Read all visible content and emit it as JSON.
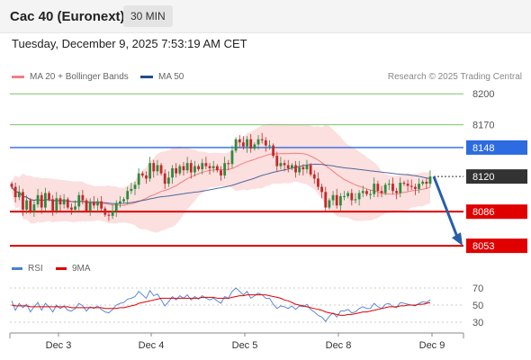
{
  "header": {
    "title": "Cac 40 (Euronext)",
    "timeframe": "30 MIN",
    "datetime": "Tuesday, December 9, 2025 7:53:19 AM CET"
  },
  "legend": {
    "ma20_label": "MA 20 + Bollinger Bands",
    "ma20_color": "#f08080",
    "ma50_label": "MA 50",
    "ma50_color": "#1f4e8c",
    "credit": "Research © 2025 Trading Central"
  },
  "rsi_legend": {
    "rsi_label": "RSI",
    "rsi_color": "#4a7fd4",
    "ma9_label": "9MA",
    "ma9_color": "#e00000"
  },
  "chart_data": {
    "type": "candlestick",
    "x_tick_labels": [
      "Dec 3",
      "Dec 4",
      "Dec 5",
      "Dec 8",
      "Dec 9"
    ],
    "price_ylim": [
      8047,
      8208
    ],
    "price_axis_labels": [
      8200,
      8170,
      8148,
      8120,
      8086,
      8053
    ],
    "levels": {
      "resistance_green": [
        8200,
        8170
      ],
      "resistance_blue": 8148,
      "current": 8120,
      "support_red": [
        8086,
        8053
      ]
    },
    "forecast_arrow": {
      "from": 8120,
      "to": 8053,
      "direction": "down"
    },
    "closes": [
      8110,
      8100,
      8105,
      8088,
      8097,
      8086,
      8093,
      8102,
      8090,
      8104,
      8098,
      8087,
      8099,
      8093,
      8098,
      8090,
      8088,
      8091,
      8102,
      8097,
      8087,
      8095,
      8092,
      8096,
      8089,
      8083,
      8082,
      8087,
      8094,
      8096,
      8098,
      8106,
      8108,
      8112,
      8123,
      8121,
      8118,
      8133,
      8125,
      8131,
      8123,
      8113,
      8119,
      8128,
      8123,
      8130,
      8126,
      8133,
      8124,
      8130,
      8127,
      8133,
      8130,
      8128,
      8130,
      8126,
      8121,
      8133,
      8132,
      8145,
      8156,
      8153,
      8149,
      8156,
      8147,
      8151,
      8156,
      8155,
      8150,
      8150,
      8140,
      8130,
      8133,
      8131,
      8128,
      8131,
      8124,
      8129,
      8127,
      8131,
      8122,
      8118,
      8110,
      8105,
      8090,
      8097,
      8102,
      8092,
      8101,
      8101,
      8104,
      8097,
      8098,
      8104,
      8106,
      8103,
      8103,
      8113,
      8106,
      8104,
      8112,
      8113,
      8106,
      8104,
      8114,
      8113,
      8111,
      8110,
      8108,
      8113,
      8115,
      8113,
      8120
    ],
    "rsi": {
      "ylim": [
        20,
        80
      ],
      "levels": [
        70,
        50,
        30
      ],
      "rsi_values": [
        55,
        44,
        52,
        47,
        51,
        42,
        48,
        53,
        44,
        52,
        48,
        42,
        50,
        46,
        49,
        44,
        43,
        46,
        52,
        49,
        43,
        48,
        46,
        49,
        45,
        42,
        41,
        45,
        50,
        52,
        53,
        57,
        58,
        60,
        66,
        62,
        58,
        67,
        61,
        63,
        56,
        49,
        54,
        60,
        56,
        61,
        58,
        62,
        56,
        60,
        57,
        61,
        58,
        56,
        58,
        55,
        52,
        60,
        58,
        66,
        70,
        66,
        62,
        66,
        58,
        61,
        64,
        62,
        58,
        58,
        51,
        46,
        49,
        48,
        46,
        49,
        45,
        49,
        48,
        51,
        45,
        42,
        38,
        36,
        31,
        37,
        41,
        36,
        43,
        43,
        45,
        41,
        42,
        46,
        48,
        46,
        46,
        52,
        48,
        46,
        51,
        52,
        48,
        47,
        53,
        52,
        51,
        50,
        49,
        52,
        54,
        53,
        56
      ],
      "ma9_values": [
        50,
        49,
        49,
        49,
        49,
        48,
        48,
        48,
        48,
        48,
        48,
        48,
        48,
        48,
        48,
        48,
        47,
        47,
        47,
        47,
        47,
        47,
        47,
        47,
        47,
        46,
        46,
        46,
        46,
        47,
        47,
        48,
        49,
        50,
        52,
        53,
        54,
        55,
        56,
        57,
        58,
        58,
        58,
        58,
        58,
        58,
        58,
        58,
        58,
        58,
        58,
        59,
        59,
        59,
        59,
        58,
        58,
        58,
        58,
        59,
        60,
        61,
        61,
        62,
        62,
        62,
        62,
        62,
        62,
        61,
        60,
        59,
        58,
        56,
        55,
        53,
        51,
        50,
        49,
        48,
        47,
        46,
        45,
        44,
        42,
        41,
        40,
        39,
        38,
        38,
        39,
        39,
        40,
        41,
        42,
        42,
        43,
        44,
        45,
        46,
        47,
        48,
        48,
        48,
        49,
        49,
        50,
        50,
        50,
        51,
        51,
        52,
        53
      ]
    }
  }
}
